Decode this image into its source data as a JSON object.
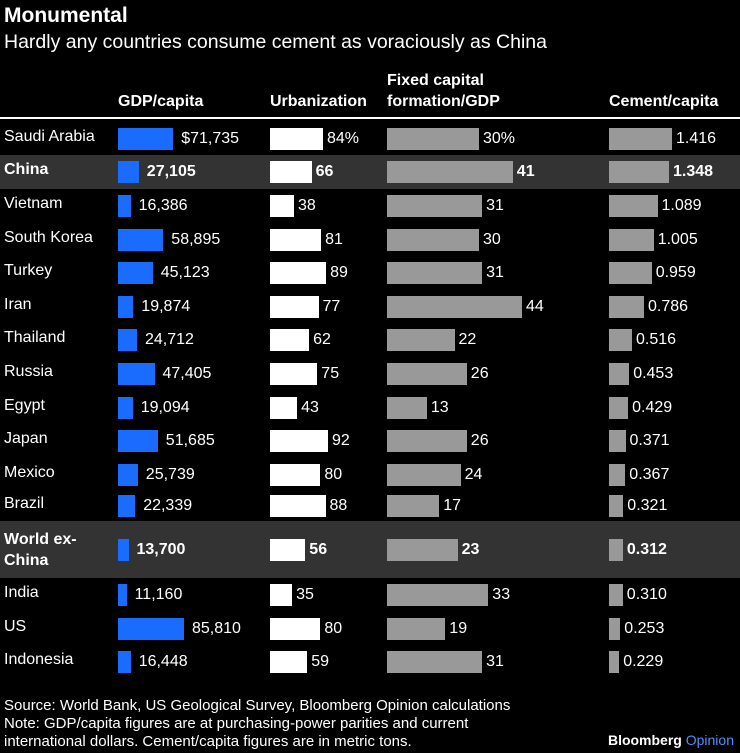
{
  "header": {
    "title": "Monumental",
    "subtitle": "Hardly any countries consume cement as voraciously as China"
  },
  "columns": {
    "gdp": "GDP/capita",
    "urbanization": "Urbanization",
    "gfcf_line1": "Fixed capital",
    "gfcf_line2": "formation/GDP",
    "cement": "Cement/capita"
  },
  "footer": {
    "source": "Source: World Bank, US Geological Survey, Bloomberg Opinion calculations",
    "note_line1": "Note: GDP/capita figures are at purchasing-power parities and current",
    "note_line2": "international dollars. Cement/capita figures are in metric tons.",
    "brand_a": "Bloomberg",
    "brand_b": "Opinion"
  },
  "colors": {
    "background": "#000000",
    "gdp_bar": "#1a6cff",
    "urbanization_bar": "#ffffff",
    "gfcf_bar": "#999999",
    "cement_bar": "#999999",
    "highlight_row": "#333333"
  },
  "chart_data": {
    "type": "table",
    "title": "Monumental",
    "subtitle": "Hardly any countries consume cement as voraciously as China",
    "columns": [
      "GDP/capita",
      "Urbanization",
      "Fixed capital formation/GDP",
      "Cement/capita"
    ],
    "rows": [
      {
        "country": "Saudi Arabia",
        "gdp": 71735,
        "gdp_label": "$71,735",
        "urb": 84,
        "urb_label": "84%",
        "gfcf": 30,
        "gfcf_label": "30%",
        "cement": 1.416,
        "cement_label": "1.416"
      },
      {
        "country": "China",
        "gdp": 27105,
        "gdp_label": "27,105",
        "urb": 66,
        "urb_label": "66",
        "gfcf": 41,
        "gfcf_label": "41",
        "cement": 1.348,
        "cement_label": "1.348",
        "highlight": true
      },
      {
        "country": "Vietnam",
        "gdp": 16386,
        "gdp_label": "16,386",
        "urb": 38,
        "urb_label": "38",
        "gfcf": 31,
        "gfcf_label": "31",
        "cement": 1.089,
        "cement_label": "1.089"
      },
      {
        "country": "South Korea",
        "gdp": 58895,
        "gdp_label": "58,895",
        "urb": 81,
        "urb_label": "81",
        "gfcf": 30,
        "gfcf_label": "30",
        "cement": 1.005,
        "cement_label": "1.005"
      },
      {
        "country": "Turkey",
        "gdp": 45123,
        "gdp_label": "45,123",
        "urb": 89,
        "urb_label": "89",
        "gfcf": 31,
        "gfcf_label": "31",
        "cement": 0.959,
        "cement_label": "0.959"
      },
      {
        "country": "Iran",
        "gdp": 19874,
        "gdp_label": "19,874",
        "urb": 77,
        "urb_label": "77",
        "gfcf": 44,
        "gfcf_label": "44",
        "cement": 0.786,
        "cement_label": "0.786"
      },
      {
        "country": "Thailand",
        "gdp": 24712,
        "gdp_label": "24,712",
        "urb": 62,
        "urb_label": "62",
        "gfcf": 22,
        "gfcf_label": "22",
        "cement": 0.516,
        "cement_label": "0.516"
      },
      {
        "country": "Russia",
        "gdp": 47405,
        "gdp_label": "47,405",
        "urb": 75,
        "urb_label": "75",
        "gfcf": 26,
        "gfcf_label": "26",
        "cement": 0.453,
        "cement_label": "0.453"
      },
      {
        "country": "Egypt",
        "gdp": 19094,
        "gdp_label": "19,094",
        "urb": 43,
        "urb_label": "43",
        "gfcf": 13,
        "gfcf_label": "13",
        "cement": 0.429,
        "cement_label": "0.429"
      },
      {
        "country": "Japan",
        "gdp": 51685,
        "gdp_label": "51,685",
        "urb": 92,
        "urb_label": "92",
        "gfcf": 26,
        "gfcf_label": "26",
        "cement": 0.371,
        "cement_label": "0.371"
      },
      {
        "country": "Mexico",
        "gdp": 25739,
        "gdp_label": "25,739",
        "urb": 80,
        "urb_label": "80",
        "gfcf": 24,
        "gfcf_label": "24",
        "cement": 0.367,
        "cement_label": "0.367"
      },
      {
        "country": "Brazil",
        "gdp": 22339,
        "gdp_label": "22,339",
        "urb": 88,
        "urb_label": "88",
        "gfcf": 17,
        "gfcf_label": "17",
        "cement": 0.321,
        "cement_label": "0.321"
      },
      {
        "country_lines": [
          "World ex-",
          "China"
        ],
        "country": "World ex-China",
        "gdp": 13700,
        "gdp_label": "13,700",
        "urb": 56,
        "urb_label": "56",
        "gfcf": 23,
        "gfcf_label": "23",
        "cement": 0.312,
        "cement_label": "0.312",
        "highlight": true
      },
      {
        "country": "India",
        "gdp": 11160,
        "gdp_label": "11,160",
        "urb": 35,
        "urb_label": "35",
        "gfcf": 33,
        "gfcf_label": "33",
        "cement": 0.31,
        "cement_label": "0.310"
      },
      {
        "country": "US",
        "gdp": 85810,
        "gdp_label": "85,810",
        "urb": 80,
        "urb_label": "80",
        "gfcf": 19,
        "gfcf_label": "19",
        "cement": 0.253,
        "cement_label": "0.253"
      },
      {
        "country": "Indonesia",
        "gdp": 16448,
        "gdp_label": "16,448",
        "urb": 59,
        "urb_label": "59",
        "gfcf": 31,
        "gfcf_label": "31",
        "cement": 0.229,
        "cement_label": "0.229"
      }
    ]
  }
}
